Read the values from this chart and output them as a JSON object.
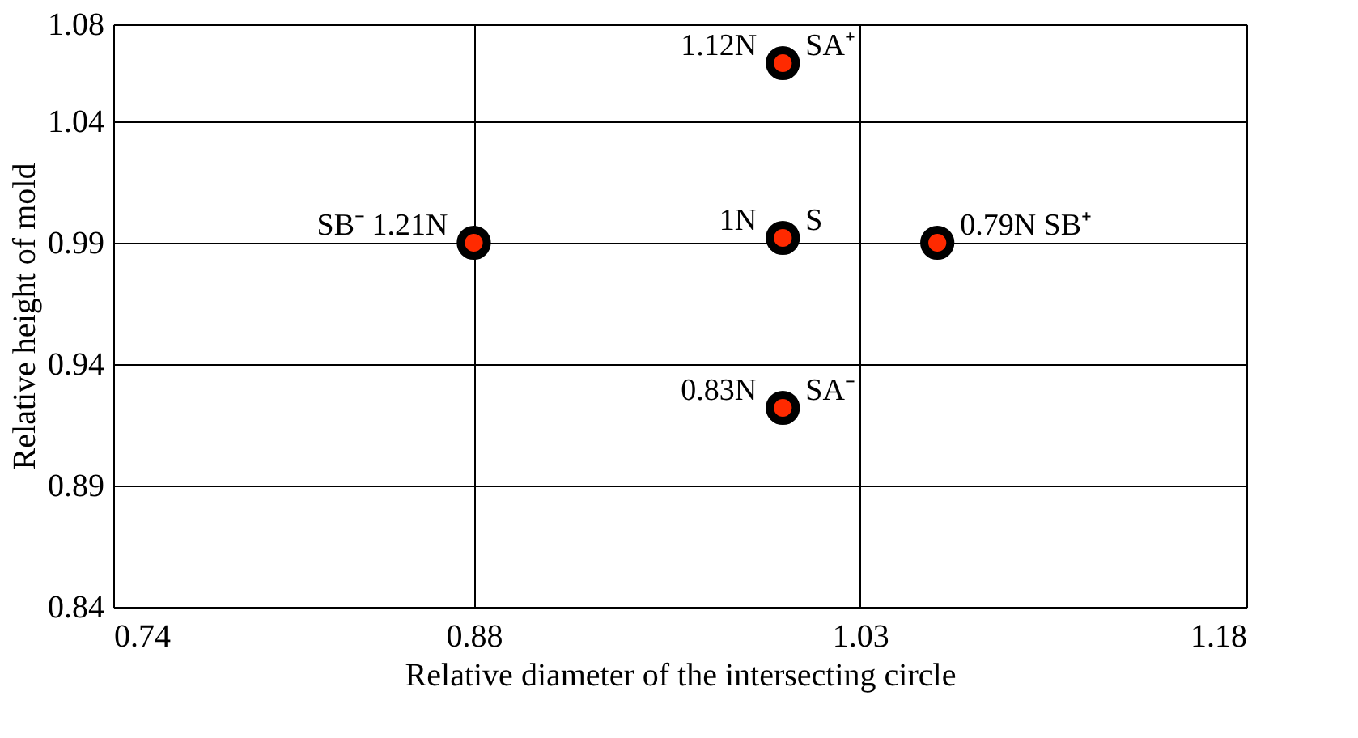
{
  "chart_data": {
    "type": "scatter",
    "xlabel": "Relative diameter of the intersecting circle",
    "ylabel": "Relative height of mold",
    "x": [
      0.88,
      1.0,
      1.06,
      1.0,
      1.0
    ],
    "series": [
      {
        "color": "#ff2a00",
        "values": [
          0.99,
          0.992,
          0.99,
          1.064,
          0.922
        ]
      }
    ],
    "xlim": [
      0.74,
      1.18
    ],
    "xticks": [
      0.74,
      0.88,
      1.03,
      1.18
    ],
    "ylim": [
      0.84,
      1.08
    ],
    "yticks": [
      0.84,
      0.89,
      0.94,
      0.99,
      1.04,
      1.08
    ],
    "grid": true,
    "marker": "circle",
    "legend": false,
    "annotations": [
      {
        "text": "SB⁻ 1.21N",
        "x": 0.88,
        "y": 0.99
      },
      {
        "text": "1N",
        "x": 1.0,
        "y": 0.992
      },
      {
        "text": "S",
        "x": 1.0,
        "y": 0.992
      },
      {
        "text": "0.79N SB⁺",
        "x": 1.06,
        "y": 0.99
      },
      {
        "text": "1.12N",
        "x": 1.0,
        "y": 1.064
      },
      {
        "text": "SA⁺",
        "x": 1.0,
        "y": 1.064
      },
      {
        "text": "0.83N",
        "x": 1.0,
        "y": 0.922
      },
      {
        "text": "SA⁻",
        "x": 1.0,
        "y": 0.922
      }
    ]
  }
}
